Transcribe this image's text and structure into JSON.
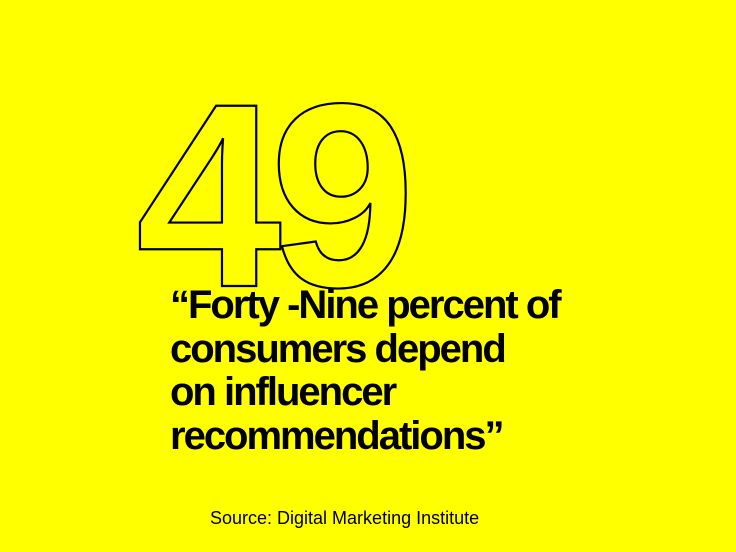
{
  "number": 49,
  "quote": [
    "“Forty -Nine percent of",
    "consumers depend",
    "on influencer",
    "recommendations”"
  ],
  "source": "Source: Digital Marketing Institute"
}
